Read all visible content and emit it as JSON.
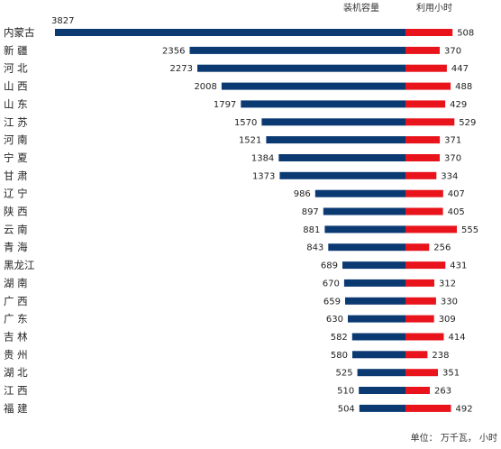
{
  "chart_data": {
    "type": "bar",
    "headers": {
      "capacity": "装机容量",
      "hours": "利用小时"
    },
    "unit_note": "单位：   万千瓦，   小时",
    "colors": {
      "capacity": "#0b3a73",
      "hours": "#e8131b"
    },
    "categories": [
      "内蒙古",
      "新  疆",
      "河  北",
      "山  西",
      "山  东",
      "江  苏",
      "河  南",
      "宁  夏",
      "甘  肃",
      "辽  宁",
      "陕  西",
      "云  南",
      "青  海",
      "黑龙江",
      "湖  南",
      "广  西",
      "广  东",
      "吉  林",
      "贵  州",
      "湖  北",
      "江  西",
      "福  建"
    ],
    "series": [
      {
        "name": "装机容量",
        "values": [
          3827,
          2356,
          2273,
          2008,
          1797,
          1570,
          1521,
          1384,
          1373,
          986,
          897,
          881,
          843,
          689,
          670,
          659,
          630,
          582,
          580,
          525,
          510,
          504
        ]
      },
      {
        "name": "利用小时",
        "values": [
          508,
          370,
          447,
          488,
          429,
          529,
          371,
          370,
          334,
          407,
          405,
          555,
          256,
          431,
          312,
          330,
          309,
          414,
          238,
          351,
          263,
          492
        ]
      }
    ]
  }
}
